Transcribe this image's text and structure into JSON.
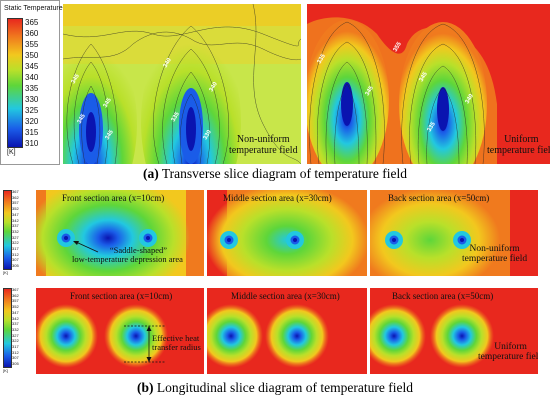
{
  "palette": {
    "red": "#e8281e",
    "orange": "#f07a1e",
    "yellow": "#f2c81e",
    "lime": "#b9e02a",
    "green": "#5ed63a",
    "cyan": "#22c8e0",
    "blue": "#1a5ce8",
    "navy": "#0a14b0"
  },
  "legend_top": {
    "title": "Static Temperature",
    "ticks": [
      "365",
      "360",
      "355",
      "350",
      "345",
      "340",
      "335",
      "330",
      "325",
      "320",
      "315",
      "310"
    ],
    "unit": "[K]"
  },
  "legend_small": {
    "ticks": [
      "367",
      "362",
      "357",
      "352",
      "347",
      "342",
      "337",
      "332",
      "327",
      "322",
      "317",
      "312",
      "307",
      "305"
    ],
    "unit": "[K]"
  },
  "panel_a_left": {
    "label_line1": "Non-uniform",
    "label_line2": "temperature field",
    "contour_labels": [
      "345",
      "345",
      "345",
      "345",
      "340",
      "340",
      "335",
      "330"
    ]
  },
  "panel_a_right": {
    "label_line1": "Uniform",
    "label_line2": "temperature field",
    "contour_labels": [
      "335",
      "345",
      "355",
      "345",
      "340",
      "335"
    ]
  },
  "caption_a": {
    "tag": "(a)",
    "text": " Transverse slice diagram of temperature field"
  },
  "row_nonuniform": {
    "front": "Front section area (x=10cm)",
    "middle": "Middle section area (x=30cm)",
    "back": "Back section area (x=50cm)",
    "saddle_line1": "“Saddle-shaped”",
    "saddle_line2": "low-temperature depression area",
    "field_line1": "Non-uniform",
    "field_line2": "temperature field"
  },
  "row_uniform": {
    "front": "Front section area (x=10cm)",
    "middle": "Middle section area (x=30cm)",
    "back": "Back section area (x=50cm)",
    "radius_line1": "Effective heat",
    "radius_line2": "transfer radius",
    "field_line1": "Uniform",
    "field_line2": "temperature field"
  },
  "caption_b": {
    "tag": "(b)",
    "text": " Longitudinal slice diagram of temperature field"
  }
}
